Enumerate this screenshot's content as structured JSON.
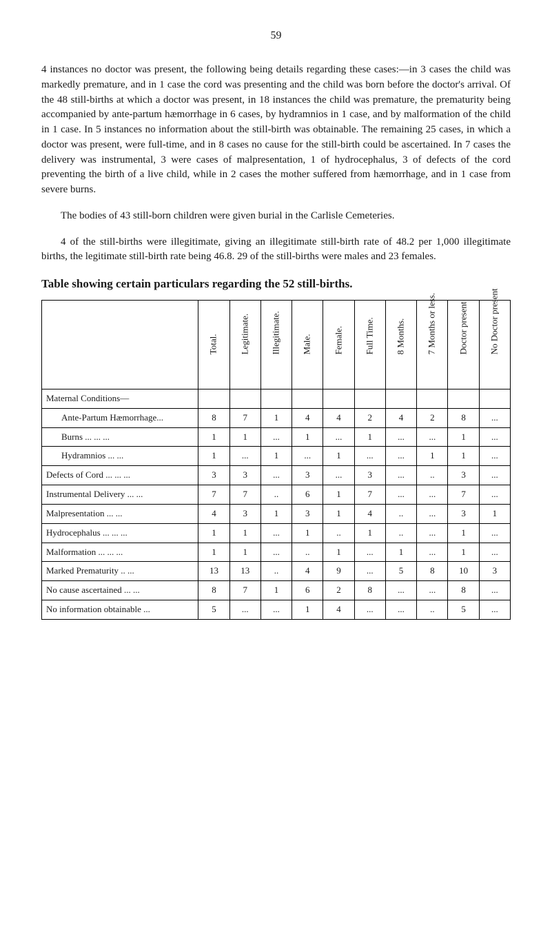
{
  "page_number": "59",
  "paragraphs": {
    "p1": "4 instances no doctor was present, the following being details regarding these cases:—in 3 cases the child was markedly premature, and in 1 case the cord was presenting and the child was born before the doctor's arrival. Of the 48 still-births at which a doctor was present, in 18 instances the child was premature, the prematurity being accompanied by ante-partum hæmorrhage in 6 cases, by hydramnios in 1 case, and by malformation of the child in 1 case. In 5 instances no information about the still-birth was obtainable. The remaining 25 cases, in which a doctor was present, were full-time, and in 8 cases no cause for the still-birth could be ascertained. In 7 cases the delivery was instrumental, 3 were cases of malpresentation, 1 of hydrocephalus, 3 of defects of the cord preventing the birth of a live child, while in 2 cases the mother suffered from hæmorrhage, and in 1 case from severe burns.",
    "p2": "The bodies of 43 still-born children were given burial in the Carlisle Cemeteries.",
    "p3": "4 of the still-births were illegitimate, giving an illegitimate still-birth rate of 48.2 per 1,000 illegitimate births, the legitimate still-birth rate being 46.8. 29 of the still-births were males and 23 females."
  },
  "table": {
    "title": "Table showing certain particulars regarding the 52 still-births.",
    "columns": [
      "Total.",
      "Legitimate.",
      "Illegitimate.",
      "Male.",
      "Female.",
      "Full Time.",
      "8 Months.",
      "7 Months or less.",
      "Doctor present",
      "No Doctor present"
    ],
    "section_header": "Maternal Conditions—",
    "sub_rows": [
      {
        "label": "Ante-Partum Hæmorrhage...",
        "cells": [
          "8",
          "7",
          "1",
          "4",
          "4",
          "2",
          "4",
          "2",
          "8",
          "..."
        ]
      },
      {
        "label": "Burns          ...     ...     ...",
        "cells": [
          "1",
          "1",
          "...",
          "1",
          "...",
          "1",
          "...",
          "...",
          "1",
          "..."
        ]
      },
      {
        "label": "Hydramnios        ...     ...",
        "cells": [
          "1",
          "...",
          "1",
          "...",
          "1",
          "...",
          "...",
          "1",
          "1",
          "..."
        ]
      }
    ],
    "rows": [
      {
        "label": "Defects of Cord ...    ...    ...",
        "cells": [
          "3",
          "3",
          "...",
          "3",
          "...",
          "3",
          "...",
          "..",
          "3",
          "..."
        ]
      },
      {
        "label": "Instrumental Delivery  ...    ...",
        "cells": [
          "7",
          "7",
          "..",
          "6",
          "1",
          "7",
          "...",
          "...",
          "7",
          "..."
        ]
      },
      {
        "label": "Malpresentation        ...    ...",
        "cells": [
          "4",
          "3",
          "1",
          "3",
          "1",
          "4",
          "..",
          "...",
          "3",
          "1"
        ]
      },
      {
        "label": "Hydrocephalus  ...    ...    ...",
        "cells": [
          "1",
          "1",
          "...",
          "1",
          "..",
          "1",
          "..",
          "...",
          "1",
          "..."
        ]
      },
      {
        "label": "Malformation    ...    ...    ...",
        "cells": [
          "1",
          "1",
          "...",
          "..",
          "1",
          "...",
          "1",
          "...",
          "1",
          "..."
        ]
      },
      {
        "label": "Marked Prematurity     ..    ...",
        "cells": [
          "13",
          "13",
          "..",
          "4",
          "9",
          "...",
          "5",
          "8",
          "10",
          "3"
        ]
      },
      {
        "label": "No cause ascertained   ...    ...",
        "cells": [
          "8",
          "7",
          "1",
          "6",
          "2",
          "8",
          "...",
          "...",
          "8",
          "..."
        ]
      },
      {
        "label": "No information obtainable    ...",
        "cells": [
          "5",
          "...",
          "...",
          "1",
          "4",
          "...",
          "...",
          "..",
          "5",
          "..."
        ]
      }
    ]
  }
}
